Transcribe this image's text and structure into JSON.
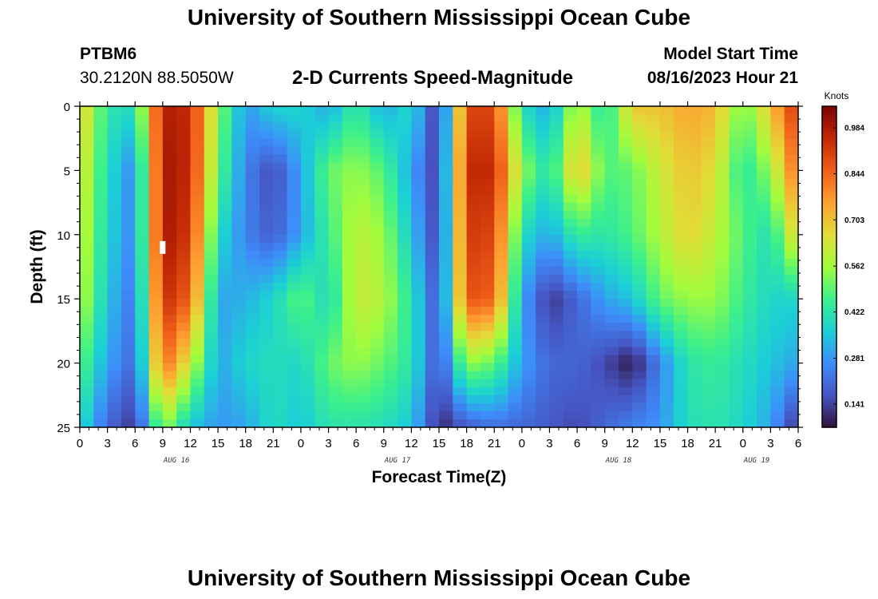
{
  "page": {
    "title": "University of Southern Mississippi Ocean Cube",
    "footer_title": "University of Southern Mississippi Ocean Cube",
    "station_id": "PTBM6",
    "station_coords": "30.2120N  88.5050W",
    "subtitle": "2-D Currents Speed-Magnitude",
    "model_start_label": "Model Start Time",
    "model_start_value": "08/16/2023 Hour 21"
  },
  "chart_data": {
    "type": "heatmap",
    "title": "2-D Currents Speed-Magnitude",
    "xlabel": "Forecast Time(Z)",
    "ylabel": "Depth (ft)",
    "x_range_hours": [
      0,
      78
    ],
    "y_range": [
      0,
      25
    ],
    "y_inverted": true,
    "x_tick_labels": [
      "0",
      "3",
      "6",
      "9",
      "12",
      "15",
      "18",
      "21",
      "0",
      "3",
      "6",
      "9",
      "12",
      "15",
      "18",
      "21",
      "0",
      "3",
      "6",
      "9",
      "12",
      "15",
      "18",
      "21",
      "0",
      "3",
      "6"
    ],
    "y_tick_labels": [
      "0",
      "5",
      "10",
      "15",
      "20",
      "25"
    ],
    "y_tick_values": [
      0,
      5,
      10,
      15,
      20,
      25
    ],
    "date_labels": [
      {
        "label": "AUG 16",
        "hour": 10.5
      },
      {
        "label": "AUG 17",
        "hour": 34.5
      },
      {
        "label": "AUG 18",
        "hour": 58.5
      },
      {
        "label": "AUG 19",
        "hour": 73.5
      }
    ],
    "colorbar": {
      "unit": "Knots",
      "min": 0.07,
      "max": 1.05,
      "ticks": [
        "0.984",
        "0.844",
        "0.703",
        "0.562",
        "0.422",
        "0.281",
        "0.141"
      ],
      "tick_values": [
        0.984,
        0.844,
        0.703,
        0.562,
        0.422,
        0.281,
        0.141
      ],
      "colormap": "turbo"
    },
    "grid_hours": [
      0,
      3,
      6,
      9,
      12,
      15,
      18,
      21,
      24,
      27,
      30,
      33,
      36,
      39,
      42,
      45,
      48,
      51,
      54,
      57,
      60,
      63,
      66,
      69,
      72,
      75,
      78
    ],
    "grid_depths": [
      0,
      5,
      10,
      15,
      20,
      25
    ],
    "speed_knots": [
      [
        0.7,
        0.42,
        0.4,
        0.98,
        0.95,
        0.55,
        0.28,
        0.38,
        0.38,
        0.3,
        0.45,
        0.3,
        0.4,
        0.1,
        0.9,
        0.9,
        0.4,
        0.3,
        0.6,
        0.4,
        0.7,
        0.7,
        0.75,
        0.72,
        0.5,
        0.7,
        0.95
      ],
      [
        0.65,
        0.4,
        0.25,
        1.0,
        0.95,
        0.5,
        0.25,
        0.15,
        0.3,
        0.5,
        0.55,
        0.48,
        0.3,
        0.12,
        0.95,
        0.95,
        0.55,
        0.4,
        0.72,
        0.48,
        0.5,
        0.62,
        0.7,
        0.65,
        0.42,
        0.55,
        0.85
      ],
      [
        0.62,
        0.38,
        0.25,
        1.0,
        0.92,
        0.4,
        0.25,
        0.18,
        0.3,
        0.45,
        0.6,
        0.55,
        0.35,
        0.12,
        0.92,
        0.9,
        0.4,
        0.3,
        0.45,
        0.42,
        0.48,
        0.58,
        0.68,
        0.6,
        0.48,
        0.4,
        0.7
      ],
      [
        0.6,
        0.35,
        0.22,
        0.95,
        0.85,
        0.3,
        0.32,
        0.38,
        0.5,
        0.38,
        0.62,
        0.58,
        0.42,
        0.15,
        0.88,
        0.85,
        0.3,
        0.12,
        0.2,
        0.3,
        0.35,
        0.5,
        0.55,
        0.55,
        0.45,
        0.38,
        0.38
      ],
      [
        0.5,
        0.3,
        0.2,
        0.85,
        0.62,
        0.3,
        0.38,
        0.4,
        0.38,
        0.5,
        0.55,
        0.5,
        0.42,
        0.15,
        0.55,
        0.5,
        0.3,
        0.2,
        0.2,
        0.15,
        0.08,
        0.25,
        0.42,
        0.45,
        0.4,
        0.35,
        0.3
      ],
      [
        0.4,
        0.2,
        0.12,
        0.55,
        0.35,
        0.28,
        0.3,
        0.4,
        0.35,
        0.42,
        0.42,
        0.4,
        0.35,
        0.1,
        0.18,
        0.22,
        0.2,
        0.18,
        0.15,
        0.2,
        0.25,
        0.28,
        0.4,
        0.42,
        0.38,
        0.3,
        0.1
      ]
    ],
    "marker": {
      "hour": 9,
      "depth": 11
    }
  }
}
